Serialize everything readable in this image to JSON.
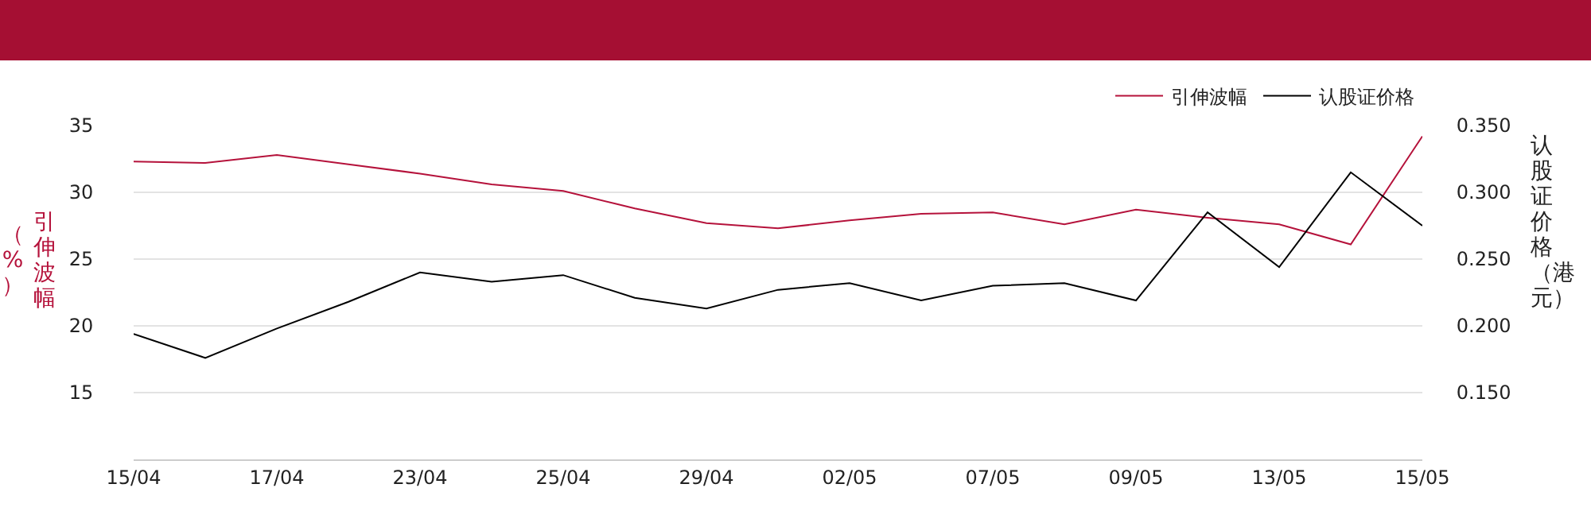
{
  "chart_data": {
    "type": "line",
    "categories": [
      "15/04",
      null,
      "17/04",
      null,
      "23/04",
      null,
      "25/04",
      null,
      "29/04",
      null,
      "02/05",
      null,
      "07/05",
      null,
      "09/05",
      null,
      "13/05",
      null,
      "15/05"
    ],
    "series": [
      {
        "name": "引伸波幅",
        "color": "#b5123b",
        "values": [
          32.3,
          32.2,
          32.8,
          32.1,
          31.4,
          30.6,
          30.1,
          28.8,
          27.7,
          27.3,
          27.9,
          28.4,
          28.5,
          27.6,
          28.7,
          28.1,
          27.6,
          26.1,
          34.2
        ]
      },
      {
        "name": "认股证价格",
        "color": "#000000",
        "axis": "y2",
        "values": [
          0.194,
          0.176,
          0.198,
          0.218,
          0.24,
          0.233,
          0.238,
          0.221,
          0.213,
          0.227,
          0.232,
          0.219,
          0.23,
          0.232,
          0.219,
          0.285,
          0.244,
          0.315,
          0.275
        ]
      }
    ],
    "ylabel": "引伸波幅（%）",
    "y2label": "认股证价格（港元）",
    "ylim": [
      10,
      35
    ],
    "yticks": [
      15,
      20,
      25,
      30,
      35
    ],
    "y2lim": [
      0.1,
      0.35
    ],
    "y2ticks": [
      {
        "value": 0.15,
        "label": "0.150"
      },
      {
        "value": 0.2,
        "label": "0.200"
      },
      {
        "value": 0.25,
        "label": "0.250"
      },
      {
        "value": 0.3,
        "label": "0.300"
      },
      {
        "value": 0.35,
        "label": "0.350"
      }
    ],
    "grid": "y",
    "legend": "top right",
    "marker": "none",
    "line_style": "solid"
  }
}
